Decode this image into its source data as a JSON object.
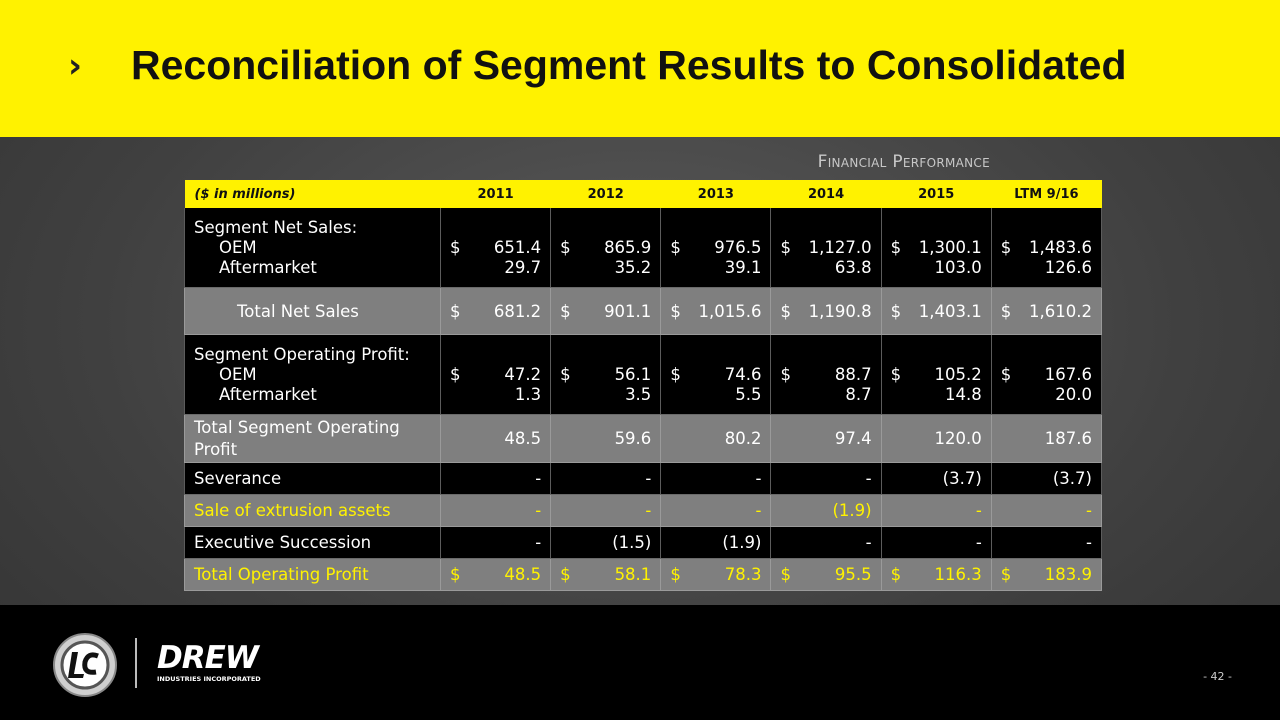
{
  "header": {
    "title": "Reconciliation of Segment Results to Consolidated"
  },
  "section_label": "Financial Performance",
  "table": {
    "columns": [
      "($ in millions)",
      "2011",
      "2012",
      "2013",
      "2014",
      "2015",
      "LTM 9/16"
    ],
    "currency_symbol": "$",
    "rows": [
      {
        "label": "Segment Net Sales:",
        "kind": "heading",
        "tone": "dark"
      },
      {
        "label": "OEM",
        "kind": "item",
        "tone": "dark",
        "currency": true,
        "values": [
          "651.4",
          "865.9",
          "976.5",
          "1,127.0",
          "1,300.1",
          "1,483.6"
        ]
      },
      {
        "label": "Aftermarket",
        "kind": "item-last",
        "tone": "dark",
        "values": [
          "29.7",
          "35.2",
          "39.1",
          "63.8",
          "103.0",
          "126.6"
        ]
      },
      {
        "label": "Total Net Sales",
        "kind": "total",
        "tone": "gray",
        "currency": true,
        "values": [
          "681.2",
          "901.1",
          "1,015.6",
          "1,190.8",
          "1,403.1",
          "1,610.2"
        ]
      },
      {
        "label": "Segment Operating Profit:",
        "kind": "heading",
        "tone": "dark"
      },
      {
        "label": "OEM",
        "kind": "item",
        "tone": "dark",
        "currency": true,
        "values": [
          "47.2",
          "56.1",
          "74.6",
          "88.7",
          "105.2",
          "167.6"
        ]
      },
      {
        "label": "Aftermarket",
        "kind": "item-last",
        "tone": "dark",
        "values": [
          "1.3",
          "3.5",
          "5.5",
          "8.7",
          "14.8",
          "20.0"
        ]
      },
      {
        "label": "Total Segment Operating Profit",
        "kind": "line-tall",
        "tone": "gray",
        "values": [
          "48.5",
          "59.6",
          "80.2",
          "97.4",
          "120.0",
          "187.6"
        ]
      },
      {
        "label": "Severance",
        "kind": "line",
        "tone": "dark",
        "values": [
          "-",
          "-",
          "-",
          "-",
          "(3.7)",
          "(3.7)"
        ]
      },
      {
        "label": "Sale of extrusion assets",
        "kind": "line",
        "tone": "gray-yellow",
        "values": [
          "-",
          "-",
          "-",
          "(1.9)",
          "-",
          "-"
        ]
      },
      {
        "label": "Executive Succession",
        "kind": "line",
        "tone": "dark",
        "values": [
          "-",
          "(1.5)",
          "(1.9)",
          "-",
          "-",
          "-"
        ]
      },
      {
        "label": "Total Operating Profit",
        "kind": "line",
        "tone": "gray-yellow",
        "currency": true,
        "values": [
          "48.5",
          "58.1",
          "78.3",
          "95.5",
          "116.3",
          "183.9"
        ]
      }
    ]
  },
  "footer": {
    "logo_text": "DREW",
    "logo_subtext": "INDUSTRIES INCORPORATED",
    "page_number": "- 42 -"
  }
}
